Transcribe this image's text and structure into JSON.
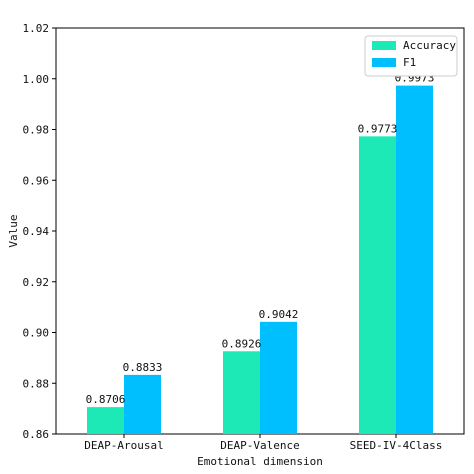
{
  "chart_data": {
    "type": "bar",
    "categories": [
      "DEAP-Arousal",
      "DEAP-Valence",
      "SEED-IV-4Class"
    ],
    "series": [
      {
        "name": "Accuracy",
        "values": [
          0.8706,
          0.8926,
          0.9773
        ],
        "labels": [
          "0.8706",
          "0.8926",
          "0.9773"
        ],
        "color": "#1de9b6"
      },
      {
        "name": "F1",
        "values": [
          0.8833,
          0.9042,
          0.9973
        ],
        "labels": [
          "0.8833",
          "0.9042",
          "0.9973"
        ],
        "color": "#00bfff"
      }
    ],
    "xlabel": "Emotional dimension",
    "ylabel": "Value",
    "ylim": [
      0.86,
      1.02
    ],
    "yticks": [
      "0.86",
      "0.88",
      "0.90",
      "0.92",
      "0.94",
      "0.96",
      "0.98",
      "1.00",
      "1.02"
    ],
    "grid": false,
    "legend_position": "top-right"
  }
}
